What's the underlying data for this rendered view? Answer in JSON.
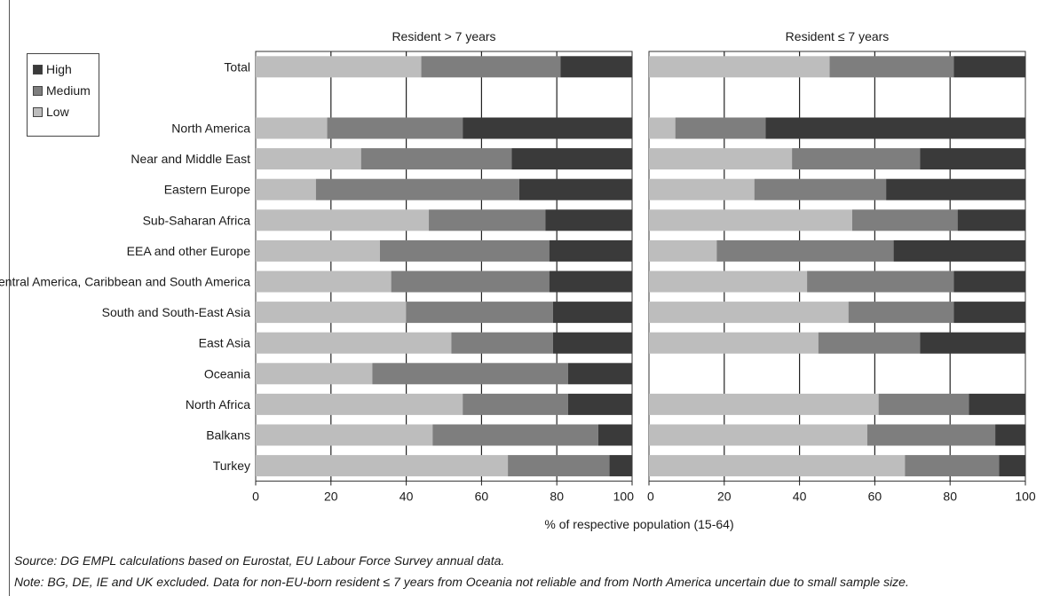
{
  "chart_data": {
    "type": "bar",
    "orientation": "horizontal",
    "stacked": true,
    "xlabel": "% of respective population (15-64)",
    "xlim": [
      0,
      100
    ],
    "xticks": [
      "0",
      "20",
      "40",
      "60",
      "80",
      "100"
    ],
    "categories": [
      "Total",
      "",
      "North America",
      "Near and Middle East",
      "Eastern Europe",
      "Sub-Saharan Africa",
      "EEA and other Europe",
      "Central America, Caribbean and South America",
      "South and South-East Asia",
      "East Asia",
      "Oceania",
      "North Africa",
      "Balkans",
      "Turkey"
    ],
    "legend": {
      "position": "top-left",
      "entries": [
        {
          "name": "High",
          "color": "#3a3a3a"
        },
        {
          "name": "Medium",
          "color": "#7e7e7e"
        },
        {
          "name": "Low",
          "color": "#bdbdbd"
        }
      ]
    },
    "panels": [
      {
        "title": "Resident > 7 years",
        "series": [
          {
            "name": "Low",
            "values": [
              44,
              null,
              19,
              28,
              16,
              46,
              33,
              36,
              40,
              52,
              31,
              55,
              47,
              67
            ]
          },
          {
            "name": "Medium",
            "values": [
              37,
              null,
              36,
              40,
              54,
              31,
              45,
              42,
              39,
              27,
              52,
              28,
              44,
              27
            ]
          },
          {
            "name": "High",
            "values": [
              19,
              null,
              45,
              32,
              30,
              23,
              22,
              22,
              21,
              21,
              17,
              17,
              9,
              6
            ]
          }
        ]
      },
      {
        "title": "Resident ≤ 7 years",
        "series": [
          {
            "name": "Low",
            "values": [
              48,
              null,
              7,
              38,
              28,
              54,
              18,
              42,
              53,
              45,
              null,
              61,
              58,
              68
            ]
          },
          {
            "name": "Medium",
            "values": [
              33,
              null,
              24,
              34,
              35,
              28,
              47,
              39,
              28,
              27,
              null,
              24,
              34,
              25
            ]
          },
          {
            "name": "High",
            "values": [
              19,
              null,
              69,
              28,
              37,
              18,
              35,
              19,
              19,
              28,
              null,
              15,
              8,
              7
            ]
          }
        ]
      }
    ]
  },
  "notes": {
    "source": "Source: DG EMPL calculations based on Eurostat, EU Labour Force Survey annual data.",
    "note": "Note: BG, DE, IE and UK excluded. Data for non-EU-born resident ≤ 7 years from Oceania not reliable and from North America uncertain due to small sample size."
  }
}
